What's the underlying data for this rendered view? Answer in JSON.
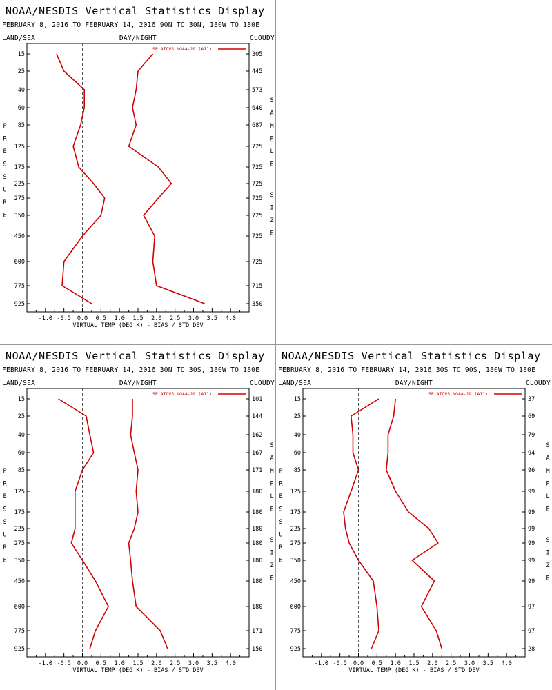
{
  "header": {
    "title": "NOAA/NESDIS Vertical Statistics Display",
    "land_sea": "LAND/SEA",
    "day_night": "DAY/NIGHT",
    "cloudy": "CLOUDY",
    "y_axis_label": "PRESSURE",
    "right_axis_label": "SAMPLE SIZE",
    "x_axis_label": "VIRTUAL TEMP (DEG K) - BIAS / STD DEV",
    "legend": "SP ATOVS NOAA-19 (A11)"
  },
  "colors": {
    "series": "#d00000",
    "axes": "#000000",
    "zero_line": "#555555"
  },
  "chart_data": [
    {
      "type": "line",
      "subtitle": "FEBRUARY 8, 2016 TO FEBRUARY 14, 2016 90N TO 30N, 180W TO 180E",
      "pressure": [
        "15",
        "25",
        "40",
        "60",
        "85",
        "125",
        "175",
        "225",
        "275",
        "350",
        "450",
        "600",
        "775",
        "925"
      ],
      "sample_size": [
        "305",
        "445",
        "573",
        "640",
        "687",
        "725",
        "725",
        "725",
        "725",
        "725",
        "725",
        "725",
        "715",
        "350"
      ],
      "xlim": [
        -1.5,
        4.5
      ],
      "xticks": [
        "-1.0",
        "-0.5",
        "0.0",
        "0.5",
        "1.0",
        "1.5",
        "2.0",
        "2.5",
        "3.0",
        "3.5",
        "4.0"
      ],
      "series": [
        {
          "values": [
            -0.7,
            -0.5,
            0.05,
            0.05,
            -0.05,
            -0.25,
            -0.1,
            0.3,
            0.6,
            0.5,
            0.0,
            -0.5,
            -0.55,
            0.25
          ]
        },
        {
          "values": [
            1.9,
            1.5,
            1.45,
            1.35,
            1.45,
            1.25,
            2.05,
            2.4,
            2.05,
            1.65,
            1.95,
            1.9,
            2.0,
            3.3
          ]
        }
      ]
    },
    {
      "type": "line",
      "subtitle": "FEBRUARY 8, 2016 TO FEBRUARY 14, 2016 30N TO 30S, 180W TO 180E",
      "pressure": [
        "15",
        "25",
        "40",
        "60",
        "85",
        "125",
        "175",
        "225",
        "275",
        "350",
        "450",
        "600",
        "775",
        "925"
      ],
      "sample_size": [
        "101",
        "144",
        "162",
        "167",
        "171",
        "180",
        "180",
        "180",
        "180",
        "180",
        "180",
        "180",
        "171",
        "150"
      ],
      "xlim": [
        -1.5,
        4.5
      ],
      "xticks": [
        "-1.0",
        "-0.5",
        "0.0",
        "0.5",
        "1.0",
        "1.5",
        "2.0",
        "2.5",
        "3.0",
        "3.5",
        "4.0"
      ],
      "series": [
        {
          "values": [
            -0.65,
            0.1,
            0.2,
            0.3,
            0.0,
            -0.2,
            -0.2,
            -0.2,
            -0.3,
            0.0,
            0.35,
            0.7,
            0.35,
            0.2
          ]
        },
        {
          "values": [
            1.35,
            1.35,
            1.3,
            1.4,
            1.5,
            1.45,
            1.5,
            1.4,
            1.25,
            1.3,
            1.35,
            1.45,
            2.1,
            2.3
          ]
        }
      ]
    },
    {
      "type": "line",
      "subtitle": "FEBRUARY 8, 2016 TO FEBRUARY 14, 2016 30S TO 90S, 180W TO 180E",
      "pressure": [
        "15",
        "25",
        "40",
        "60",
        "85",
        "125",
        "175",
        "225",
        "275",
        "350",
        "450",
        "600",
        "775",
        "925"
      ],
      "sample_size": [
        "37",
        "69",
        "79",
        "94",
        "96",
        "99",
        "99",
        "99",
        "99",
        "99",
        "99",
        "97",
        "97",
        "28"
      ],
      "xlim": [
        -1.5,
        4.5
      ],
      "xticks": [
        "-1.0",
        "-0.5",
        "0.0",
        "0.5",
        "1.0",
        "1.5",
        "2.0",
        "2.5",
        "3.0",
        "3.5",
        "4.0"
      ],
      "series": [
        {
          "values": [
            0.55,
            -0.2,
            -0.15,
            -0.15,
            0.0,
            -0.2,
            -0.4,
            -0.35,
            -0.25,
            0.0,
            0.4,
            0.5,
            0.55,
            0.35
          ]
        },
        {
          "values": [
            1.0,
            0.95,
            0.8,
            0.8,
            0.75,
            1.0,
            1.35,
            1.9,
            2.15,
            1.45,
            2.05,
            1.7,
            2.1,
            2.25
          ]
        }
      ]
    }
  ]
}
